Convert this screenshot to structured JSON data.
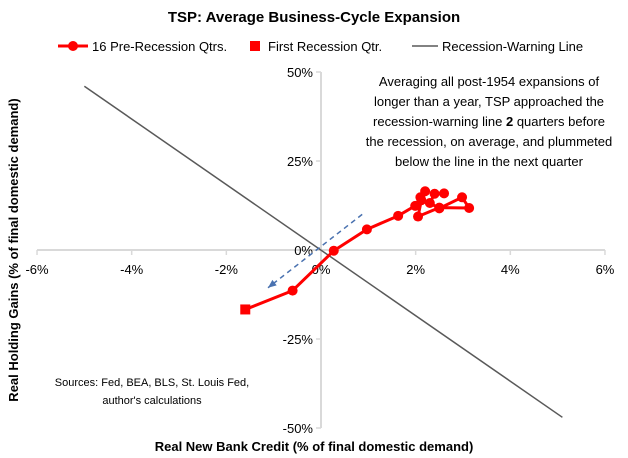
{
  "chart_data": {
    "type": "line",
    "title": "TSP: Average Business-Cycle Expansion",
    "xlabel": "Real New Bank Credit (% of final domestic demand)",
    "ylabel": "Real Holding Gains (% of final domestic demand)",
    "xlim": [
      -6,
      6
    ],
    "ylim": [
      -50,
      50
    ],
    "x_ticks": [
      -6,
      -4,
      -2,
      0,
      2,
      4,
      6
    ],
    "x_tick_labels": [
      "-6%",
      "-4%",
      "-2%",
      "0%",
      "2%",
      "4%",
      "6%"
    ],
    "y_ticks": [
      50,
      25,
      0,
      -25,
      -50
    ],
    "y_tick_labels": [
      "50%",
      "25%",
      "0%",
      "-25%",
      "-50%"
    ],
    "legend": [
      "16 Pre-Recession Qtrs.",
      "First Recession Qtr.",
      "Recession-Warning Line"
    ],
    "series": [
      {
        "name": "16 Pre-Recession Qtrs.",
        "color": "#ff0000",
        "points": [
          [
            2.6,
            15.9
          ],
          [
            2.4,
            15.8
          ],
          [
            2.3,
            13.2
          ],
          [
            2.5,
            11.7
          ],
          [
            2.98,
            14.8
          ],
          [
            3.13,
            11.8
          ],
          [
            2.5,
            11.9
          ],
          [
            2.05,
            9.4
          ],
          [
            2.12,
            14.0
          ],
          [
            2.2,
            16.5
          ],
          [
            2.1,
            14.8
          ],
          [
            1.99,
            12.4
          ],
          [
            1.63,
            9.6
          ],
          [
            0.97,
            5.8
          ],
          [
            0.27,
            -0.2
          ],
          [
            -0.6,
            -11.4
          ]
        ]
      },
      {
        "name": "First Recession Qtr.",
        "color": "#ff0000",
        "points": [
          [
            -1.6,
            -16.7
          ]
        ]
      },
      {
        "name": "Recession-Warning Line",
        "color": "#595959",
        "points": [
          [
            -5,
            46
          ],
          [
            5.1,
            -47
          ]
        ]
      }
    ],
    "arrow": {
      "from": [
        0.87,
        10
      ],
      "to": [
        -1.12,
        -10.6
      ],
      "color": "#4a72b0"
    },
    "annotation": [
      "Averaging all post-1954 expansions of",
      "longer than a year, TSP approached the",
      "recession-warning line ",
      "2",
      " quarters before",
      "the recession, on average, and plummeted",
      "below the line in the next quarter"
    ],
    "sources": [
      "Sources: Fed, BEA, BLS, St. Louis Fed,",
      "author's calculations"
    ]
  }
}
